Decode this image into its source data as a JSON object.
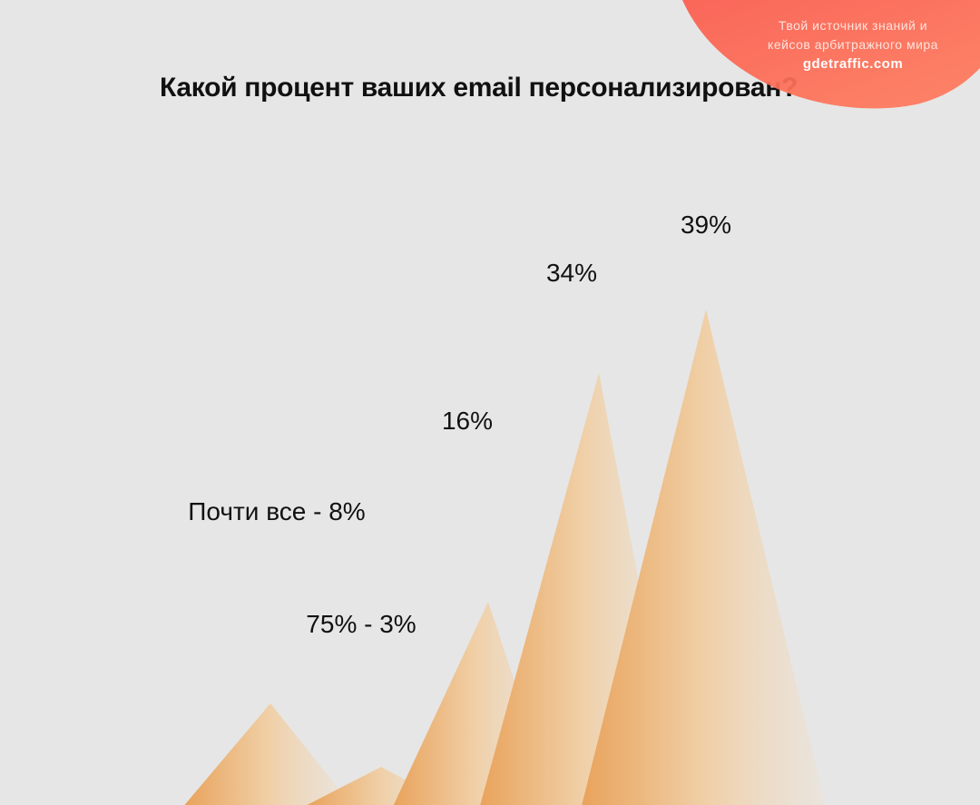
{
  "brand": {
    "tagline_1": "Твой источник знаний и",
    "tagline_2": "кейсов арбитражного мира",
    "site": "gdetraffic.com",
    "color": "#fb6552"
  },
  "chart_data": {
    "type": "area",
    "title": "Какой процент ваших email персонализирован?",
    "labels": [
      "Почти все - 8%",
      "75% - 3%",
      "16%",
      "34%",
      "39%"
    ],
    "values": [
      8,
      3,
      16,
      34,
      39
    ],
    "unit": "%",
    "xlabel": "",
    "ylabel": "",
    "ylim": [
      0,
      45
    ],
    "grid": false,
    "legend": "none",
    "fill_color": "#e9a35c"
  }
}
